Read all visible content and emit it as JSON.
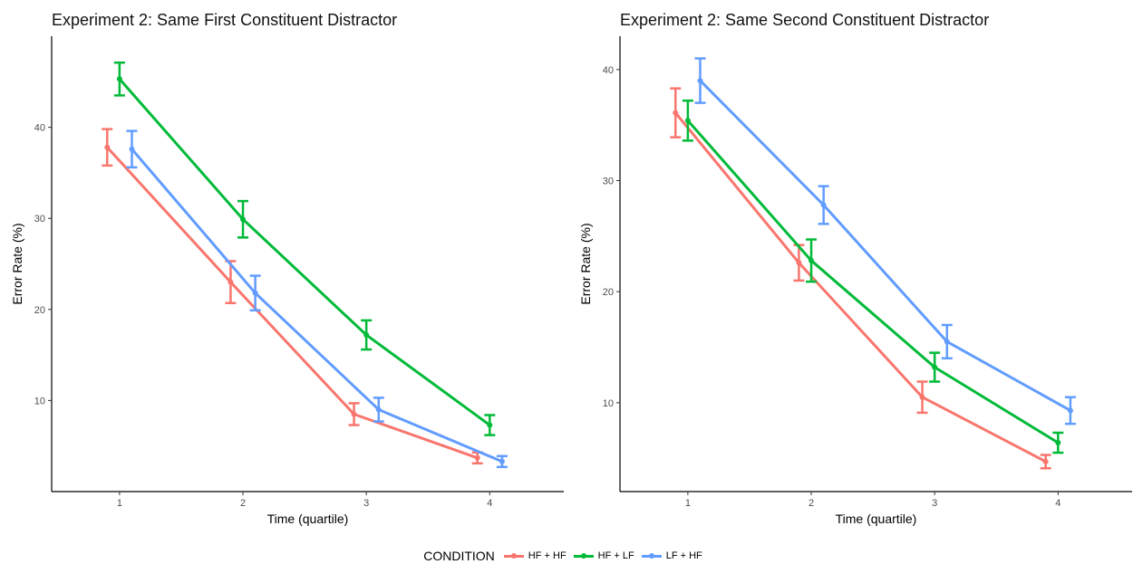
{
  "chart_data": [
    {
      "type": "line",
      "title": "Experiment 2: Same First Constituent Distractor",
      "xlabel": "Time (quartile)",
      "ylabel": "Error Rate (%)",
      "categories": [
        1,
        2,
        3,
        4
      ],
      "xlim": [
        0.45,
        4.6
      ],
      "ylim": [
        0,
        50
      ],
      "yticks": [
        10,
        20,
        30,
        40
      ],
      "grid": false,
      "series": [
        {
          "name": "HF + HF",
          "color": "#F8766D",
          "values": [
            37.8,
            23.0,
            8.5,
            3.7
          ],
          "err": [
            2.0,
            2.3,
            1.2,
            0.6
          ]
        },
        {
          "name": "HF + LF",
          "color": "#00BA38",
          "values": [
            45.3,
            29.9,
            17.2,
            7.3
          ],
          "err": [
            1.8,
            2.0,
            1.6,
            1.1
          ]
        },
        {
          "name": "LF + HF",
          "color": "#619CFF",
          "values": [
            37.6,
            21.8,
            9.0,
            3.3
          ],
          "err": [
            2.0,
            1.9,
            1.3,
            0.6
          ]
        }
      ]
    },
    {
      "type": "line",
      "title": "Experiment 2: Same Second Constituent Distractor",
      "xlabel": "Time (quartile)",
      "ylabel": "Error Rate (%)",
      "categories": [
        1,
        2,
        3,
        4
      ],
      "xlim": [
        0.45,
        4.6
      ],
      "ylim": [
        2,
        43
      ],
      "yticks": [
        10,
        20,
        30,
        40
      ],
      "grid": false,
      "series": [
        {
          "name": "HF + HF",
          "color": "#F8766D",
          "values": [
            36.1,
            22.6,
            10.5,
            4.7
          ],
          "err": [
            2.2,
            1.6,
            1.4,
            0.6
          ]
        },
        {
          "name": "HF + LF",
          "color": "#00BA38",
          "values": [
            35.4,
            22.8,
            13.2,
            6.4
          ],
          "err": [
            1.8,
            1.9,
            1.3,
            0.9
          ]
        },
        {
          "name": "LF + HF",
          "color": "#619CFF",
          "values": [
            39.0,
            27.8,
            15.5,
            9.3
          ],
          "err": [
            2.0,
            1.7,
            1.5,
            1.2
          ]
        }
      ]
    }
  ],
  "legend": {
    "title": "CONDITION",
    "items": [
      {
        "label": "HF + HF",
        "color": "#F8766D"
      },
      {
        "label": "HF + LF",
        "color": "#00BA38"
      },
      {
        "label": "LF + HF",
        "color": "#619CFF"
      }
    ]
  }
}
